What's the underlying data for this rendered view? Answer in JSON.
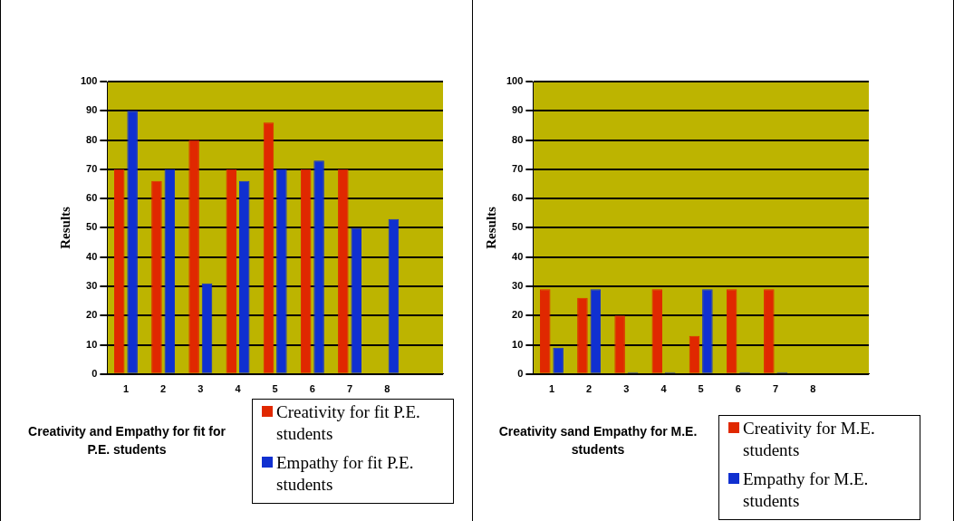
{
  "chart_data": [
    {
      "type": "bar",
      "title": "Creativity and Empathy for fit for P.E. students",
      "ylabel": "Results",
      "categories": [
        "1",
        "2",
        "3",
        "4",
        "5",
        "6",
        "7",
        "8",
        null
      ],
      "series": [
        {
          "name": "Creativity for fit P.E. students",
          "color": "#e02800",
          "values": [
            70,
            66,
            80,
            70,
            86,
            70,
            70,
            null,
            null
          ]
        },
        {
          "name": "Empathy for fit P.E. students",
          "color": "#1030d0",
          "values": [
            90,
            70,
            31,
            66,
            70,
            73,
            50,
            53,
            null
          ]
        }
      ],
      "ylim": [
        0,
        100
      ],
      "yticks": [
        0,
        10,
        20,
        30,
        40,
        50,
        60,
        70,
        80,
        90,
        100
      ],
      "grid": "y",
      "legend": "bottom right"
    },
    {
      "type": "bar",
      "title": "Creativity sand Empathy for M.E. students",
      "ylabel": "Results",
      "categories": [
        "1",
        "2",
        "3",
        "4",
        "5",
        "6",
        "7",
        "8",
        null
      ],
      "series": [
        {
          "name": "Creativity for M.E. students",
          "color": "#e02800",
          "values": [
            29,
            26,
            20,
            29,
            13,
            29,
            29,
            null,
            null
          ]
        },
        {
          "name": "Empathy for M.E. students",
          "color": "#1030d0",
          "values": [
            9,
            29,
            0,
            0,
            29,
            0,
            0,
            null,
            null
          ]
        }
      ],
      "ylim": [
        0,
        100
      ],
      "yticks": [
        0,
        10,
        20,
        30,
        40,
        50,
        60,
        70,
        80,
        90,
        100
      ],
      "grid": "y",
      "legend": "bottom right"
    }
  ]
}
